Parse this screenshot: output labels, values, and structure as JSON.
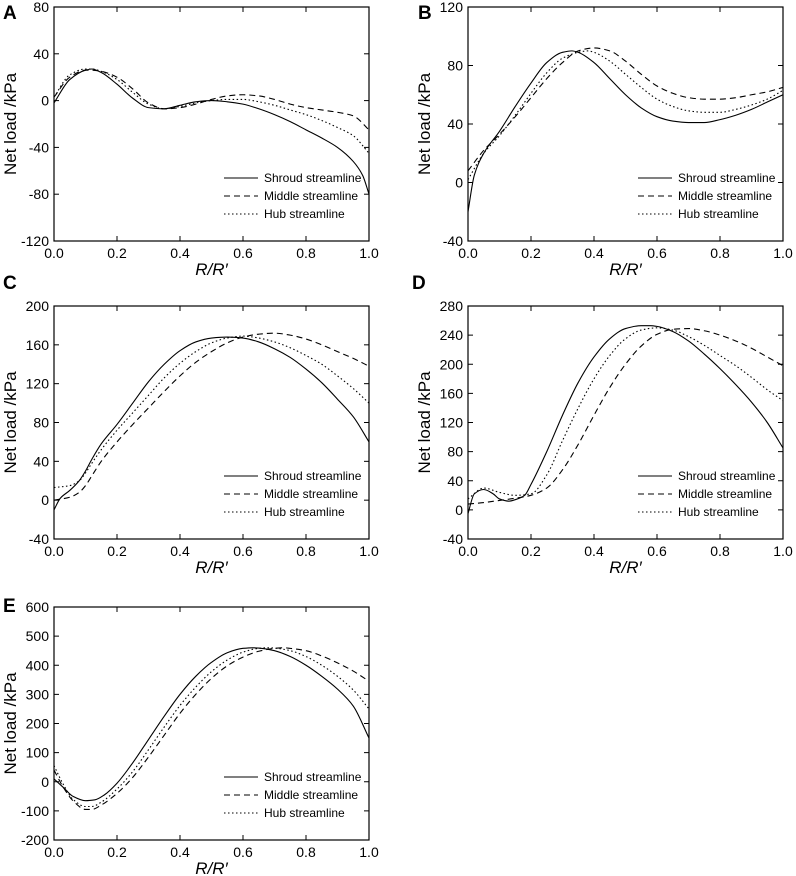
{
  "figure_title": "",
  "legend": {
    "shroud": "Shroud streamline",
    "middle": "Middle streamline",
    "hub": "Hub streamline"
  },
  "styles": {
    "shroud": "solid",
    "middle": "dashed",
    "hub": "dotted"
  },
  "line_color": "#000000",
  "chart_data": [
    {
      "panel": "A",
      "type": "line",
      "xlabel_italic": "R/R′",
      "ylabel": "Net load /kPa",
      "xlim": [
        0,
        1
      ],
      "ylim": [
        -120,
        80
      ],
      "xticks": [
        0.0,
        0.2,
        0.4,
        0.6,
        0.8,
        1.0
      ],
      "xtick_labels": [
        "0.0",
        "0.2",
        "0.4",
        "0.6",
        "0.8",
        "1.0"
      ],
      "yticks": [
        -120,
        -80,
        -40,
        0,
        40,
        80
      ],
      "ytick_labels": [
        "-120",
        "-80",
        "-40",
        "0",
        "40",
        "80"
      ],
      "legend_position": "bottom-right",
      "series": [
        {
          "name": "Shroud streamline",
          "style": "solid",
          "x": [
            0,
            0.05,
            0.1,
            0.12,
            0.15,
            0.2,
            0.25,
            0.3,
            0.35,
            0.4,
            0.45,
            0.5,
            0.55,
            0.6,
            0.65,
            0.7,
            0.75,
            0.8,
            0.85,
            0.9,
            0.95,
            0.98,
            1.0
          ],
          "y": [
            -2,
            18,
            26,
            27,
            24,
            14,
            2,
            -6,
            -7,
            -4,
            -1,
            0,
            -1,
            -3,
            -7,
            -12,
            -18,
            -25,
            -32,
            -40,
            -52,
            -64,
            -80
          ]
        },
        {
          "name": "Middle streamline",
          "style": "dashed",
          "x": [
            0,
            0.05,
            0.1,
            0.12,
            0.15,
            0.2,
            0.25,
            0.3,
            0.35,
            0.4,
            0.45,
            0.5,
            0.55,
            0.6,
            0.65,
            0.7,
            0.75,
            0.8,
            0.85,
            0.9,
            0.95,
            1.0
          ],
          "y": [
            3,
            20,
            26,
            26,
            25,
            20,
            10,
            -2,
            -7,
            -6,
            -3,
            1,
            4,
            5,
            4,
            1,
            -3,
            -6,
            -8,
            -10,
            -13,
            -25
          ]
        },
        {
          "name": "Hub streamline",
          "style": "dotted",
          "x": [
            0,
            0.05,
            0.1,
            0.12,
            0.15,
            0.2,
            0.25,
            0.3,
            0.35,
            0.4,
            0.45,
            0.5,
            0.55,
            0.6,
            0.65,
            0.7,
            0.75,
            0.8,
            0.85,
            0.9,
            0.95,
            1.0
          ],
          "y": [
            3,
            22,
            27,
            27,
            25,
            18,
            7,
            -3,
            -7,
            -5,
            -2,
            0,
            1,
            1,
            -1,
            -4,
            -8,
            -12,
            -17,
            -23,
            -30,
            -45
          ]
        }
      ]
    },
    {
      "panel": "B",
      "type": "line",
      "xlabel_italic": "R/R′",
      "ylabel": "Net load /kPa",
      "xlim": [
        0,
        1
      ],
      "ylim": [
        -40,
        120
      ],
      "xticks": [
        0.0,
        0.2,
        0.4,
        0.6,
        0.8,
        1.0
      ],
      "xtick_labels": [
        "0.0",
        "0.2",
        "0.4",
        "0.6",
        "0.8",
        "1.0"
      ],
      "yticks": [
        -40,
        0,
        40,
        80,
        120
      ],
      "ytick_labels": [
        "-40",
        "0",
        "40",
        "80",
        "120"
      ],
      "legend_position": "bottom-right",
      "series": [
        {
          "name": "Shroud streamline",
          "style": "solid",
          "x": [
            0,
            0.02,
            0.05,
            0.1,
            0.15,
            0.2,
            0.25,
            0.3,
            0.33,
            0.35,
            0.4,
            0.45,
            0.5,
            0.55,
            0.6,
            0.65,
            0.7,
            0.75,
            0.8,
            0.85,
            0.9,
            0.95,
            1.0
          ],
          "y": [
            -20,
            5,
            20,
            35,
            52,
            68,
            82,
            89,
            90,
            89,
            82,
            71,
            60,
            51,
            45,
            42,
            41,
            41,
            43,
            46,
            50,
            55,
            60
          ]
        },
        {
          "name": "Middle streamline",
          "style": "dashed",
          "x": [
            0,
            0.05,
            0.1,
            0.15,
            0.2,
            0.25,
            0.3,
            0.35,
            0.4,
            0.45,
            0.5,
            0.55,
            0.6,
            0.65,
            0.7,
            0.75,
            0.8,
            0.85,
            0.9,
            0.95,
            1.0
          ],
          "y": [
            8,
            22,
            33,
            45,
            58,
            71,
            82,
            90,
            92,
            90,
            83,
            74,
            66,
            61,
            58,
            57,
            57,
            58,
            60,
            62,
            65
          ]
        },
        {
          "name": "Hub streamline",
          "style": "dotted",
          "x": [
            0,
            0.05,
            0.1,
            0.15,
            0.2,
            0.25,
            0.3,
            0.35,
            0.38,
            0.4,
            0.45,
            0.5,
            0.55,
            0.6,
            0.65,
            0.7,
            0.75,
            0.8,
            0.85,
            0.9,
            0.95,
            1.0
          ],
          "y": [
            2,
            20,
            32,
            46,
            61,
            75,
            85,
            89,
            90,
            89,
            83,
            74,
            65,
            57,
            52,
            49,
            48,
            48,
            50,
            53,
            57,
            63
          ]
        }
      ]
    },
    {
      "panel": "C",
      "type": "line",
      "xlabel_italic": "R/R′",
      "ylabel": "Net load /kPa",
      "xlim": [
        0,
        1
      ],
      "ylim": [
        -40,
        200
      ],
      "xticks": [
        0.0,
        0.2,
        0.4,
        0.6,
        0.8,
        1.0
      ],
      "xtick_labels": [
        "0.0",
        "0.2",
        "0.4",
        "0.6",
        "0.8",
        "1.0"
      ],
      "yticks": [
        -40,
        0,
        40,
        80,
        120,
        160,
        200
      ],
      "ytick_labels": [
        "-40",
        "0",
        "40",
        "80",
        "120",
        "160",
        "200"
      ],
      "legend_position": "bottom-right",
      "series": [
        {
          "name": "Shroud streamline",
          "style": "solid",
          "x": [
            0,
            0.02,
            0.05,
            0.08,
            0.1,
            0.12,
            0.15,
            0.2,
            0.25,
            0.3,
            0.35,
            0.4,
            0.45,
            0.5,
            0.55,
            0.6,
            0.65,
            0.7,
            0.75,
            0.8,
            0.85,
            0.9,
            0.95,
            1.0
          ],
          "y": [
            -10,
            2,
            10,
            20,
            30,
            42,
            58,
            78,
            100,
            122,
            140,
            154,
            163,
            167,
            168,
            167,
            163,
            156,
            147,
            135,
            121,
            104,
            86,
            60
          ]
        },
        {
          "name": "Middle streamline",
          "style": "dashed",
          "x": [
            0,
            0.05,
            0.08,
            0.1,
            0.12,
            0.15,
            0.2,
            0.25,
            0.3,
            0.35,
            0.4,
            0.45,
            0.5,
            0.55,
            0.6,
            0.65,
            0.7,
            0.75,
            0.8,
            0.85,
            0.9,
            0.95,
            1.0
          ],
          "y": [
            0,
            3,
            8,
            15,
            25,
            40,
            60,
            78,
            95,
            112,
            128,
            142,
            153,
            162,
            168,
            171,
            172,
            170,
            166,
            160,
            153,
            146,
            138
          ]
        },
        {
          "name": "Hub streamline",
          "style": "dotted",
          "x": [
            0,
            0.05,
            0.08,
            0.1,
            0.12,
            0.15,
            0.2,
            0.25,
            0.3,
            0.35,
            0.4,
            0.45,
            0.5,
            0.55,
            0.6,
            0.65,
            0.7,
            0.75,
            0.8,
            0.85,
            0.9,
            0.95,
            1.0
          ],
          "y": [
            13,
            15,
            20,
            28,
            38,
            52,
            72,
            90,
            108,
            126,
            141,
            153,
            162,
            167,
            169,
            167,
            163,
            157,
            149,
            140,
            128,
            115,
            100
          ]
        }
      ]
    },
    {
      "panel": "D",
      "type": "line",
      "xlabel_italic": "R/R′",
      "ylabel": "Net load /kPa",
      "xlim": [
        0,
        1
      ],
      "ylim": [
        -40,
        280
      ],
      "xticks": [
        0.0,
        0.2,
        0.4,
        0.6,
        0.8,
        1.0
      ],
      "xtick_labels": [
        "0.0",
        "0.2",
        "0.4",
        "0.6",
        "0.8",
        "1.0"
      ],
      "yticks": [
        -40,
        0,
        40,
        80,
        120,
        160,
        200,
        240,
        280
      ],
      "ytick_labels": [
        "-40",
        "0",
        "40",
        "80",
        "120",
        "160",
        "200",
        "240",
        "280"
      ],
      "legend_position": "bottom-right",
      "series": [
        {
          "name": "Shroud streamline",
          "style": "solid",
          "x": [
            0,
            0.02,
            0.05,
            0.08,
            0.1,
            0.13,
            0.15,
            0.18,
            0.2,
            0.25,
            0.3,
            0.35,
            0.4,
            0.45,
            0.5,
            0.55,
            0.58,
            0.6,
            0.65,
            0.7,
            0.75,
            0.8,
            0.85,
            0.9,
            0.95,
            1.0
          ],
          "y": [
            -5,
            22,
            28,
            22,
            15,
            12,
            14,
            20,
            35,
            80,
            130,
            175,
            210,
            235,
            249,
            253,
            253,
            252,
            245,
            232,
            214,
            194,
            172,
            148,
            120,
            85
          ]
        },
        {
          "name": "Middle streamline",
          "style": "dashed",
          "x": [
            0,
            0.05,
            0.1,
            0.15,
            0.2,
            0.25,
            0.3,
            0.35,
            0.4,
            0.45,
            0.5,
            0.55,
            0.6,
            0.65,
            0.7,
            0.75,
            0.8,
            0.85,
            0.9,
            0.95,
            1.0
          ],
          "y": [
            8,
            10,
            13,
            16,
            20,
            30,
            55,
            90,
            130,
            168,
            200,
            225,
            241,
            248,
            249,
            246,
            240,
            232,
            222,
            210,
            198
          ]
        },
        {
          "name": "Hub streamline",
          "style": "dotted",
          "x": [
            0,
            0.05,
            0.1,
            0.15,
            0.2,
            0.25,
            0.3,
            0.35,
            0.4,
            0.45,
            0.5,
            0.55,
            0.6,
            0.65,
            0.7,
            0.75,
            0.8,
            0.85,
            0.9,
            0.95,
            1.0
          ],
          "y": [
            15,
            30,
            24,
            20,
            22,
            48,
            95,
            140,
            180,
            212,
            235,
            247,
            250,
            247,
            238,
            226,
            212,
            198,
            182,
            165,
            150
          ]
        }
      ]
    },
    {
      "panel": "E",
      "type": "line",
      "xlabel_italic": "R/R′",
      "ylabel": "Net load /kPa",
      "xlim": [
        0,
        1
      ],
      "ylim": [
        -200,
        600
      ],
      "xticks": [
        0.0,
        0.2,
        0.4,
        0.6,
        0.8,
        1.0
      ],
      "xtick_labels": [
        "0.0",
        "0.2",
        "0.4",
        "0.6",
        "0.8",
        "1.0"
      ],
      "yticks": [
        -200,
        -100,
        0,
        100,
        200,
        300,
        400,
        500,
        600
      ],
      "ytick_labels": [
        "-200",
        "-100",
        "0",
        "100",
        "200",
        "300",
        "400",
        "500",
        "600"
      ],
      "legend_position": "bottom-right",
      "series": [
        {
          "name": "Shroud streamline",
          "style": "solid",
          "x": [
            0,
            0.03,
            0.06,
            0.1,
            0.13,
            0.16,
            0.2,
            0.25,
            0.3,
            0.35,
            0.4,
            0.45,
            0.5,
            0.55,
            0.6,
            0.63,
            0.65,
            0.7,
            0.75,
            0.8,
            0.85,
            0.9,
            0.95,
            1.0
          ],
          "y": [
            10,
            -20,
            -50,
            -65,
            -62,
            -45,
            -5,
            65,
            145,
            225,
            300,
            362,
            410,
            443,
            458,
            460,
            459,
            450,
            430,
            400,
            362,
            318,
            260,
            150
          ]
        },
        {
          "name": "Middle streamline",
          "style": "dashed",
          "x": [
            0,
            0.03,
            0.06,
            0.1,
            0.12,
            0.15,
            0.2,
            0.25,
            0.3,
            0.35,
            0.4,
            0.45,
            0.5,
            0.55,
            0.6,
            0.65,
            0.7,
            0.73,
            0.75,
            0.8,
            0.85,
            0.9,
            0.95,
            1.0
          ],
          "y": [
            40,
            -20,
            -65,
            -95,
            -95,
            -80,
            -40,
            15,
            85,
            160,
            235,
            300,
            355,
            398,
            428,
            448,
            458,
            460,
            458,
            450,
            432,
            408,
            380,
            345
          ]
        },
        {
          "name": "Hub streamline",
          "style": "dotted",
          "x": [
            0,
            0.03,
            0.06,
            0.1,
            0.12,
            0.15,
            0.2,
            0.25,
            0.3,
            0.35,
            0.4,
            0.45,
            0.5,
            0.55,
            0.6,
            0.65,
            0.68,
            0.7,
            0.75,
            0.8,
            0.85,
            0.9,
            0.95,
            1.0
          ],
          "y": [
            55,
            -10,
            -60,
            -85,
            -85,
            -70,
            -25,
            35,
            110,
            188,
            262,
            325,
            378,
            418,
            445,
            458,
            460,
            459,
            450,
            430,
            400,
            362,
            315,
            250
          ]
        }
      ]
    }
  ]
}
